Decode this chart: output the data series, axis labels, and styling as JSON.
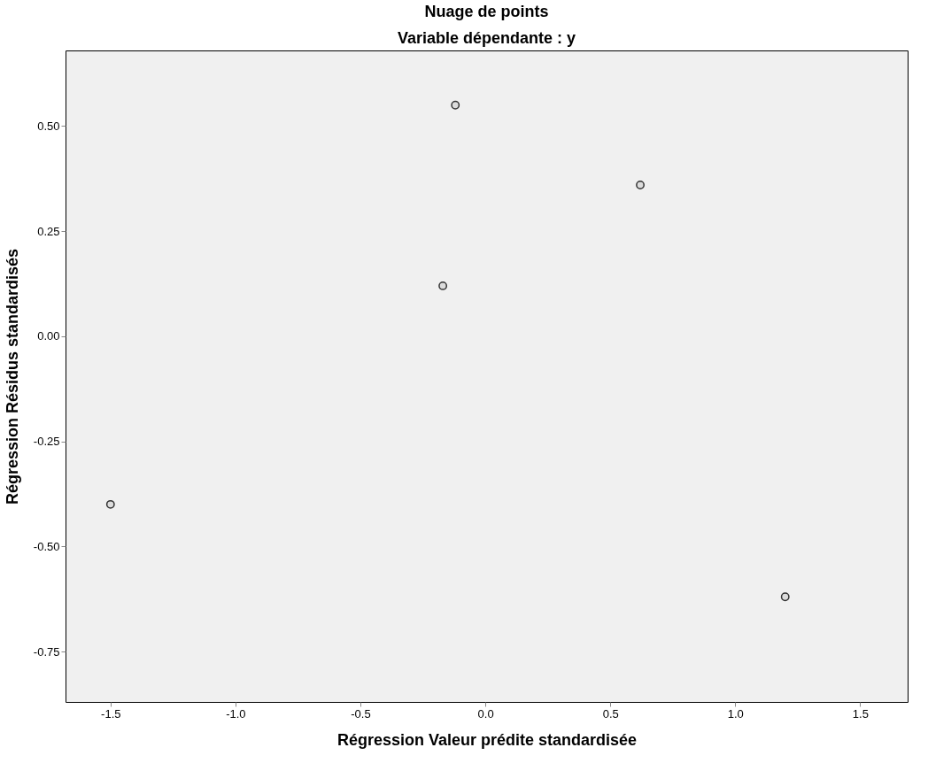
{
  "chart_data": {
    "type": "scatter",
    "title": "Nuage de points",
    "subtitle": "Variable dépendante : y",
    "xlabel": "Régression Valeur prédite standardisée",
    "ylabel": "Régression Résidus standardisés",
    "x": [
      -1.5,
      -0.12,
      -0.17,
      0.62,
      1.2
    ],
    "series": [
      {
        "color": "#333333",
        "values": [
          -0.4,
          0.55,
          0.12,
          0.36,
          -0.62
        ]
      }
    ],
    "xlim": [
      -1.68,
      1.69
    ],
    "ylim": [
      -0.87,
      0.68
    ],
    "xticks": [
      -1.5,
      {
        "value": -1.0,
        "label": "-1.0"
      },
      -0.5,
      {
        "value": 0.0,
        "label": "0.0"
      },
      0.5,
      {
        "value": 1.0,
        "label": "1.0"
      },
      1.5
    ],
    "yticks": [
      -0.75,
      {
        "value": -0.5,
        "label": "-0.50"
      },
      -0.25,
      {
        "value": 0.0,
        "label": "0.00"
      },
      0.25,
      {
        "value": 0.5,
        "label": "0.50"
      }
    ],
    "grid": false,
    "legend": false,
    "marker": "circle"
  }
}
